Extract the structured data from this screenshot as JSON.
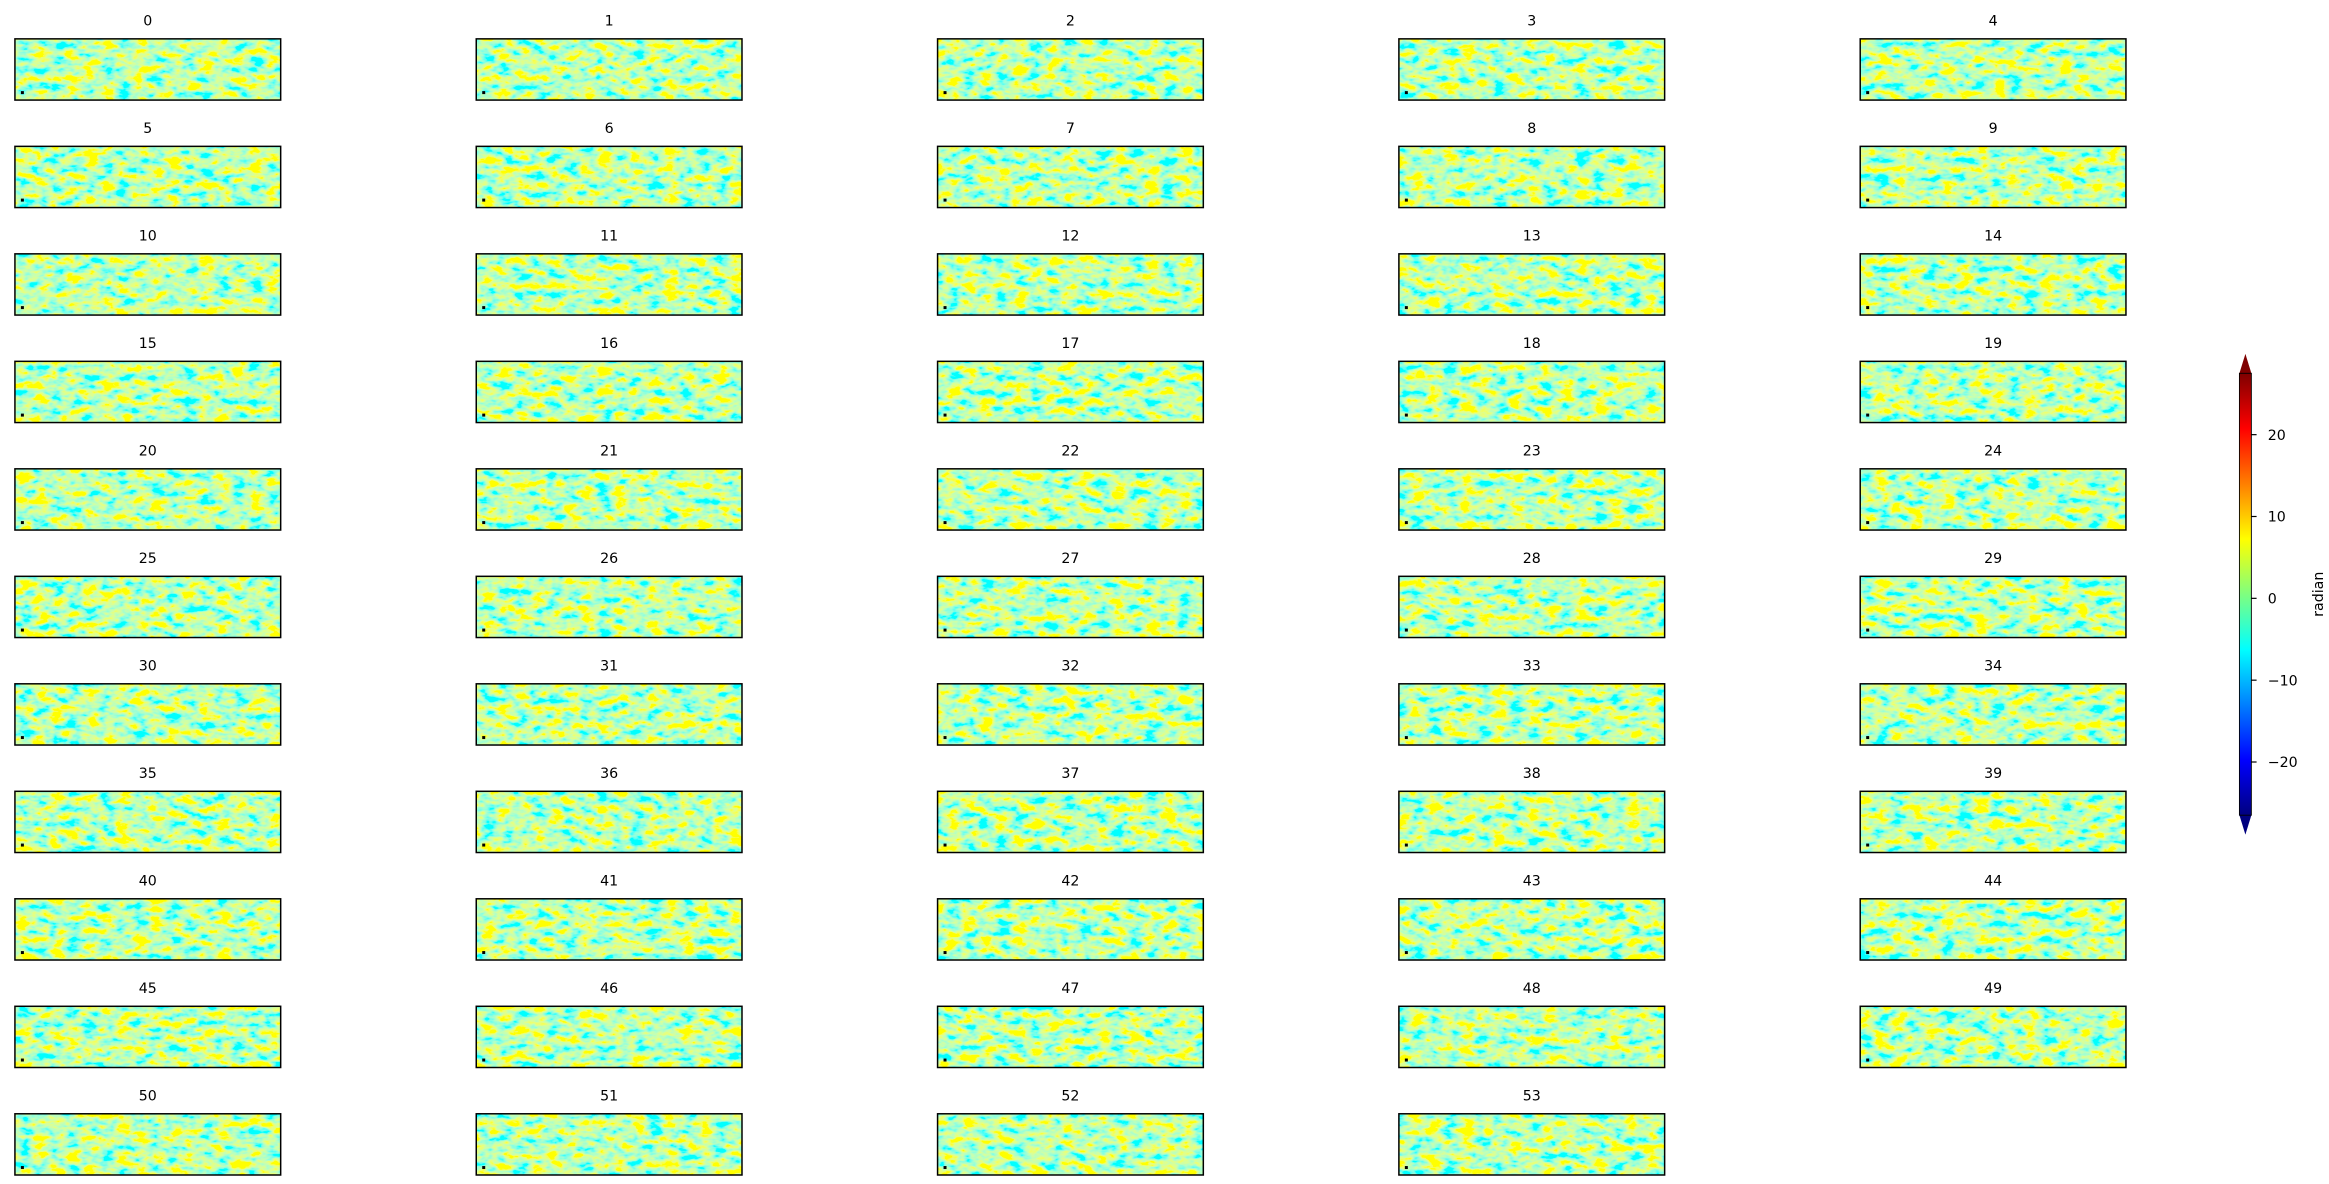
{
  "chart_data": {
    "type": "image-grid",
    "panels": [
      "0",
      "1",
      "2",
      "3",
      "4",
      "5",
      "6",
      "7",
      "8",
      "9",
      "10",
      "11",
      "12",
      "13",
      "14",
      "15",
      "16",
      "17",
      "18",
      "19",
      "20",
      "21",
      "22",
      "23",
      "24",
      "25",
      "26",
      "27",
      "28",
      "29",
      "30",
      "31",
      "32",
      "33",
      "34",
      "35",
      "36",
      "37",
      "38",
      "39",
      "40",
      "41",
      "42",
      "43",
      "44",
      "45",
      "46",
      "47",
      "48",
      "49",
      "50",
      "51",
      "52",
      "53"
    ],
    "colorbar": {
      "label": "radian",
      "lim": [
        -26.5,
        27.5
      ],
      "ticks": [
        {
          "value": -20,
          "label": "−20"
        },
        {
          "value": -10,
          "label": "−10"
        },
        0,
        10,
        20
      ],
      "colormap": "jet",
      "extend": "both"
    }
  }
}
